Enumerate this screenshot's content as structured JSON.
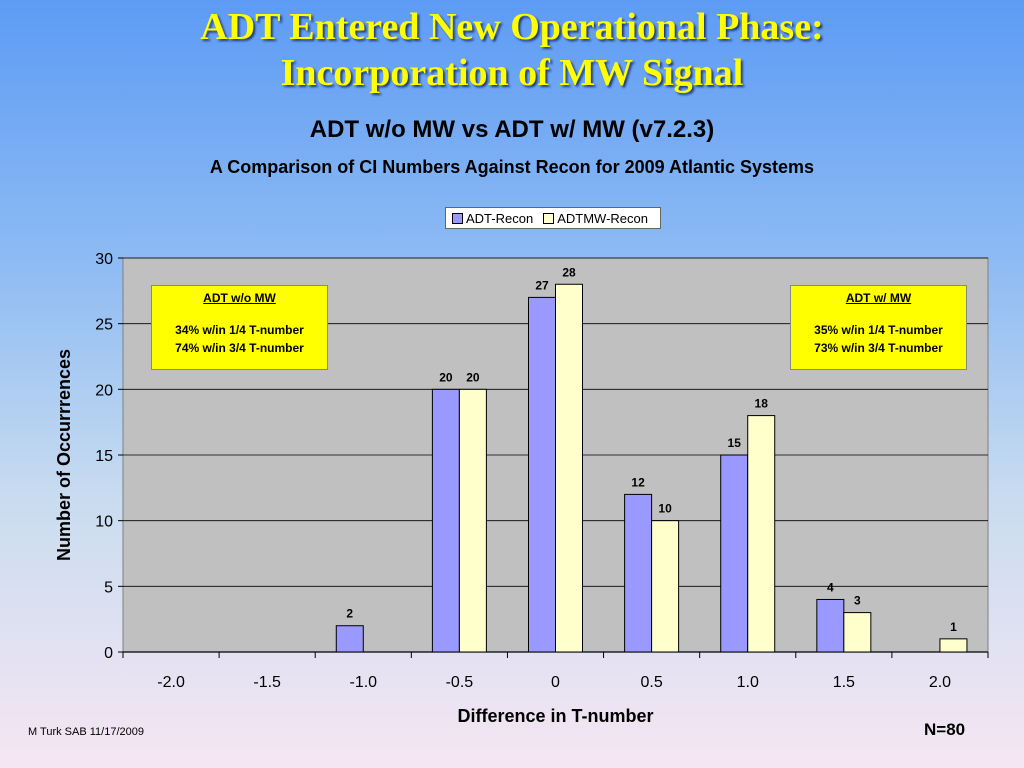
{
  "slide": {
    "title_line1": "ADT Entered New Operational Phase:",
    "title_line2": "Incorporation of MW Signal",
    "footer_left": "M Turk SAB 11/17/2009",
    "footer_right": "N=80"
  },
  "notes": {
    "left": {
      "head": "ADT w/o MW",
      "line1": "34% w/in 1/4 T-number",
      "line2": "74% w/in 3/4 T-number"
    },
    "right": {
      "head": "ADT w/ MW",
      "line1": "35% w/in 1/4 T-number",
      "line2": "73% w/in 3/4 T-number"
    }
  },
  "chart_data": {
    "type": "bar",
    "title": "ADT w/o MW vs ADT w/ MW (v7.2.3)",
    "subtitle": "A Comparison of CI Numbers Against Recon for 2009 Atlantic Systems",
    "xlabel": "Difference in T-number",
    "ylabel": "Number of Occurrrences",
    "categories": [
      "-2.0",
      "-1.5",
      "-1.0",
      "-0.5",
      "0",
      "0.5",
      "1.0",
      "1.5",
      "2.0"
    ],
    "series": [
      {
        "name": "ADT-Recon",
        "color": "#9999ff",
        "values": [
          0,
          0,
          2,
          20,
          27,
          12,
          15,
          4,
          0
        ]
      },
      {
        "name": "ADTMW-Recon",
        "color": "#ffffcc",
        "values": [
          0,
          0,
          0,
          20,
          28,
          10,
          18,
          3,
          1
        ]
      }
    ],
    "ylim": [
      0,
      30
    ],
    "yticks": [
      "0",
      "5",
      "10",
      "15",
      "20",
      "25",
      "30"
    ],
    "grid": true,
    "plot_background": "#c0c0c0",
    "legend_position": "top"
  }
}
